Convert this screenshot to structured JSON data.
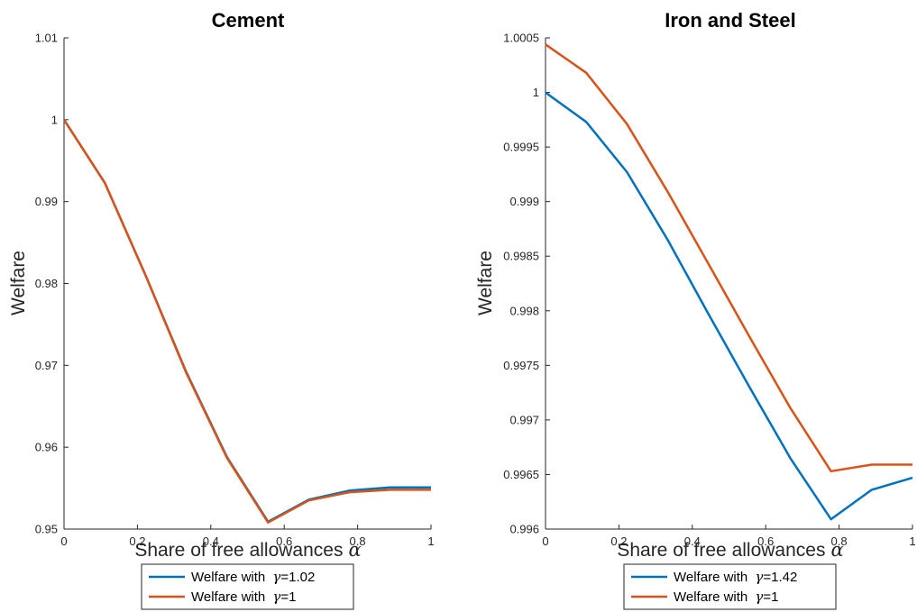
{
  "chart_data": [
    {
      "type": "line",
      "title": "Cement",
      "xlabel": "Share of free allowances",
      "xlabel_symbol": "α",
      "ylabel": "Welfare",
      "xlim": [
        0,
        1
      ],
      "ylim": [
        0.95,
        1.01
      ],
      "xticks": [
        0,
        0.2,
        0.4,
        0.6,
        0.8,
        1
      ],
      "xtick_labels": [
        "0",
        "0.2",
        "0.4",
        "0.6",
        "0.8",
        "1"
      ],
      "yticks": [
        0.95,
        0.96,
        0.97,
        0.98,
        0.99,
        1,
        1.01
      ],
      "ytick_labels": [
        "0.95",
        "0.96",
        "0.97",
        "0.98",
        "0.99",
        "1",
        "1.01"
      ],
      "x": [
        0,
        0.111,
        0.222,
        0.333,
        0.444,
        0.556,
        0.667,
        0.778,
        0.889,
        1
      ],
      "grid": false,
      "legend_position": "below",
      "series": [
        {
          "name": "Welfare with γ=1.02",
          "legend_prefix": "Welfare with ",
          "legend_symbol": "γ",
          "legend_suffix": "=1.02",
          "color": "#0072BD",
          "values": [
            1.0,
            0.9923,
            0.981,
            0.9692,
            0.9588,
            0.9509,
            0.9536,
            0.9547,
            0.9551,
            0.9551
          ]
        },
        {
          "name": "Welfare with γ=1",
          "legend_prefix": "Welfare with ",
          "legend_symbol": "γ",
          "legend_suffix": "=1",
          "color": "#D95319",
          "values": [
            1.0,
            0.9923,
            0.981,
            0.9691,
            0.9587,
            0.9508,
            0.9535,
            0.9545,
            0.9548,
            0.9548
          ]
        }
      ]
    },
    {
      "type": "line",
      "title": "Iron and Steel",
      "xlabel": "Share of free allowances",
      "xlabel_symbol": "α",
      "ylabel": "Welfare",
      "xlim": [
        0,
        1
      ],
      "ylim": [
        0.996,
        1.0005
      ],
      "xticks": [
        0,
        0.2,
        0.4,
        0.6,
        0.8,
        1
      ],
      "xtick_labels": [
        "0",
        "0.2",
        "0.4",
        "0.6",
        "0.8",
        "1"
      ],
      "yticks": [
        0.996,
        0.9965,
        0.997,
        0.9975,
        0.998,
        0.9985,
        0.999,
        0.9995,
        1,
        1.0005
      ],
      "ytick_labels": [
        "0.996",
        "0.9965",
        "0.997",
        "0.9975",
        "0.998",
        "0.9985",
        "0.999",
        "0.9995",
        "1",
        "1.0005"
      ],
      "x": [
        0,
        0.111,
        0.222,
        0.333,
        0.444,
        0.556,
        0.667,
        0.778,
        0.889,
        1
      ],
      "grid": false,
      "legend_position": "below",
      "series": [
        {
          "name": "Welfare with γ=1.42",
          "legend_prefix": "Welfare with ",
          "legend_symbol": "γ",
          "legend_suffix": "=1.42",
          "color": "#0072BD",
          "values": [
            1.0,
            0.99973,
            0.99927,
            0.99865,
            0.99797,
            0.9973,
            0.99665,
            0.99609,
            0.99636,
            0.99647
          ]
        },
        {
          "name": "Welfare with γ=1",
          "legend_prefix": "Welfare with ",
          "legend_symbol": "γ",
          "legend_suffix": "=1",
          "color": "#D95319",
          "values": [
            1.00044,
            1.00018,
            0.99971,
            0.99909,
            0.99843,
            0.99776,
            0.99711,
            0.99653,
            0.99659,
            0.99659
          ]
        }
      ]
    }
  ]
}
